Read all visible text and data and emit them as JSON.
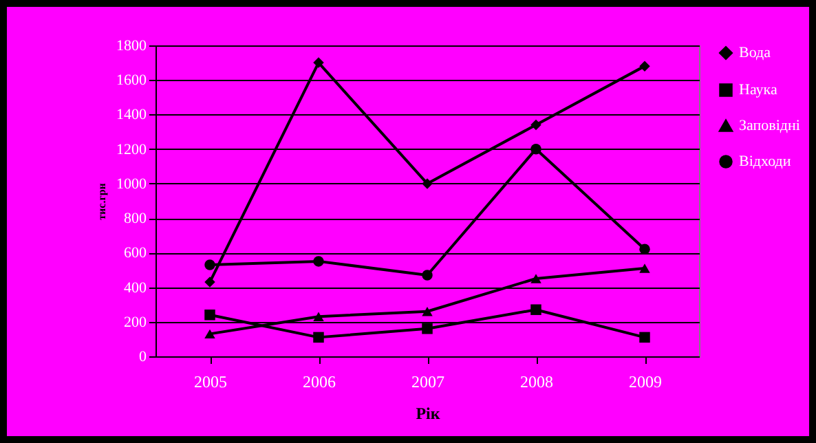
{
  "chart_data": {
    "type": "line",
    "xlabel": "Рік",
    "ylabel": "тис.грн",
    "categories": [
      "2005",
      "2006",
      "2007",
      "2008",
      "2009"
    ],
    "series": [
      {
        "name": "Вода",
        "color": "#000000",
        "marker": "diamond",
        "values": [
          430,
          1700,
          1000,
          1340,
          1680
        ]
      },
      {
        "name": "Наука",
        "color": "#000000",
        "marker": "square",
        "values": [
          240,
          110,
          160,
          270,
          110
        ]
      },
      {
        "name": "Заповідні",
        "color": "#000000",
        "marker": "triangle",
        "values": [
          130,
          230,
          260,
          450,
          510
        ]
      },
      {
        "name": "Відходи",
        "color": "#000000",
        "marker": "circle",
        "values": [
          530,
          550,
          470,
          1200,
          620
        ]
      }
    ],
    "ylim": [
      0,
      1800
    ],
    "yticks": [
      0,
      200,
      400,
      600,
      800,
      1000,
      1200,
      1400,
      1600,
      1800
    ],
    "grid": "y",
    "legend": "right"
  }
}
